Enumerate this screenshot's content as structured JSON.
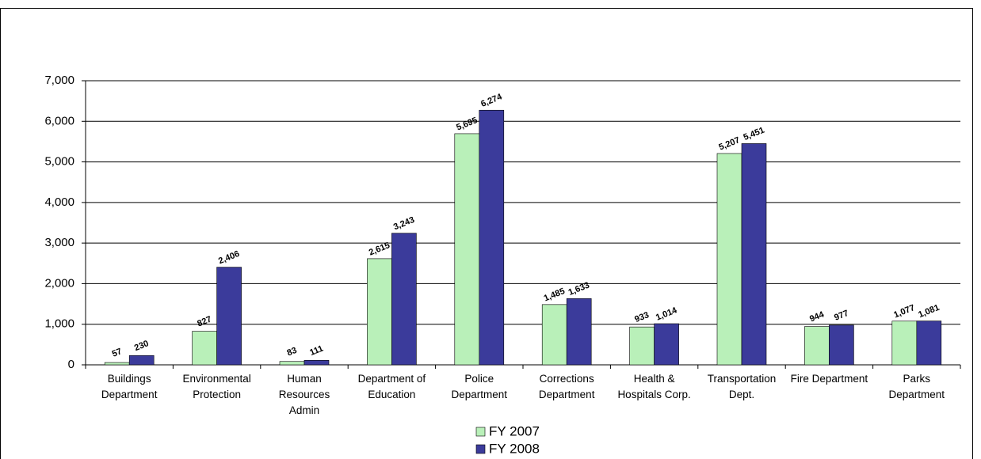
{
  "chart_data": {
    "type": "bar",
    "categories": [
      "Buildings Department",
      "Environmental Protection",
      "Human Resources Admin",
      "Department of Education",
      "Police Department",
      "Corrections Department",
      "Health & Hospitals Corp.",
      "Transportation Dept.",
      "Fire Department",
      "Parks Department"
    ],
    "series": [
      {
        "name": "FY 2007",
        "color": "#b9f0b9",
        "values": [
          57,
          827,
          83,
          2615,
          5695,
          1485,
          933,
          5207,
          944,
          1077
        ],
        "value_labels": [
          "57",
          "827",
          "83",
          "2,615",
          "5,695",
          "1,485",
          "933",
          "5,207",
          "944",
          "1,077"
        ]
      },
      {
        "name": "FY 2008",
        "color": "#3b3b9b",
        "values": [
          230,
          2406,
          111,
          3243,
          6274,
          1633,
          1014,
          5451,
          977,
          1081
        ],
        "value_labels": [
          "230",
          "2,406",
          "111",
          "3,243",
          "6,274",
          "1,633",
          "1,014",
          "5,451",
          "977",
          "1,081"
        ]
      }
    ],
    "ylim": [
      0,
      7000
    ],
    "yticks": [
      0,
      {
        "value": 1000,
        "label": "1,000"
      },
      {
        "value": 2000,
        "label": "2,000"
      },
      {
        "value": 3000,
        "label": "3,000"
      },
      {
        "value": 4000,
        "label": "4,000"
      },
      {
        "value": 5000,
        "label": "5,000"
      },
      {
        "value": 6000,
        "label": "6,000"
      },
      {
        "value": 7000,
        "label": "7,000"
      }
    ],
    "grid": true
  }
}
